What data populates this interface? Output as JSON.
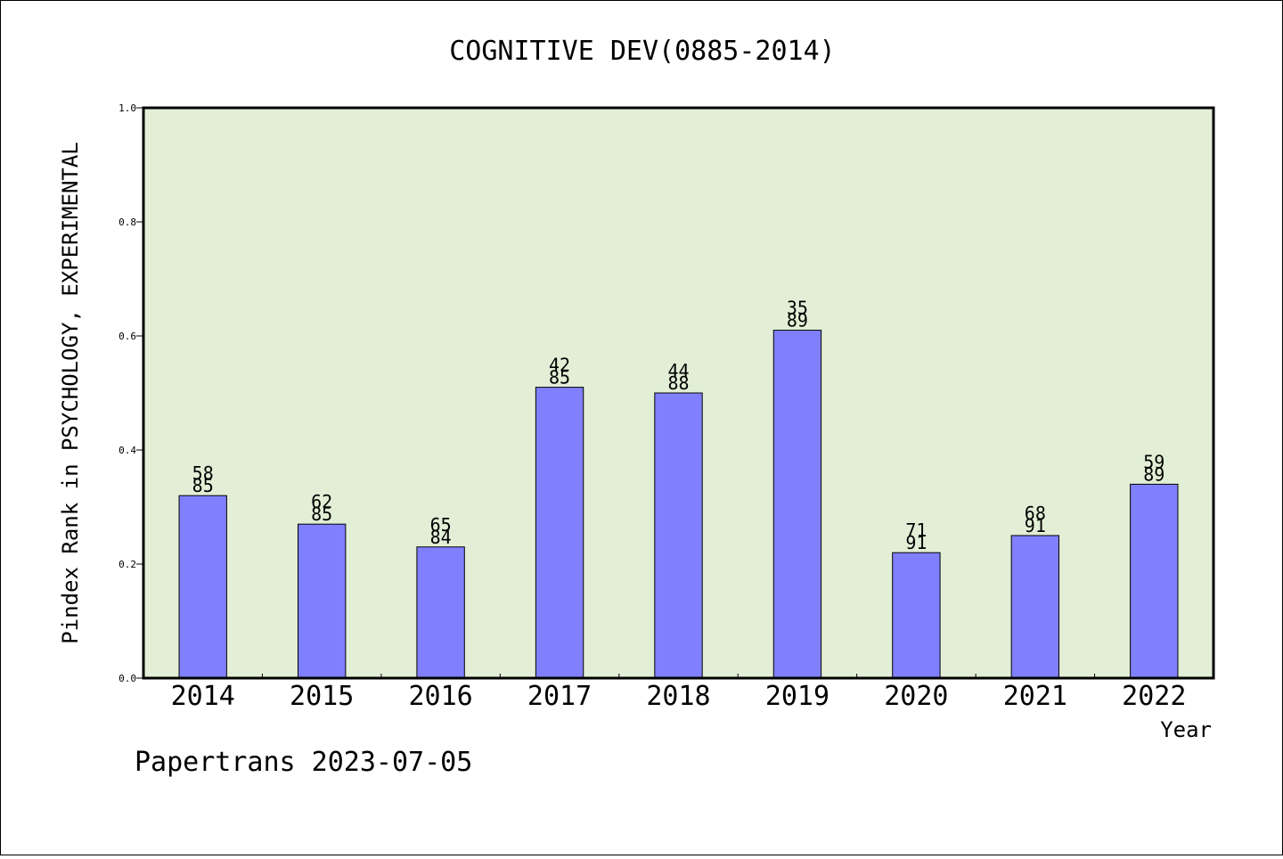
{
  "chart_data": {
    "type": "bar",
    "title": "COGNITIVE DEV(0885-2014)",
    "xlabel": "Year",
    "ylabel": "Pindex Rank in PSYCHOLOGY, EXPERIMENTAL",
    "ylim": [
      0,
      1.0
    ],
    "yticks": [
      "0.0",
      "0.2",
      "0.4",
      "0.6",
      "0.8",
      "1.0"
    ],
    "categories": [
      "2014",
      "2015",
      "2016",
      "2017",
      "2018",
      "2019",
      "2020",
      "2021",
      "2022"
    ],
    "values": [
      0.32,
      0.27,
      0.23,
      0.51,
      0.5,
      0.61,
      0.22,
      0.25,
      0.34
    ],
    "rank_labels": [
      "58",
      "62",
      "65",
      "42",
      "44",
      "35",
      "71",
      "68",
      "59"
    ],
    "total_labels": [
      "85",
      "85",
      "84",
      "85",
      "88",
      "89",
      "91",
      "91",
      "89"
    ],
    "grid": false,
    "colors": {
      "plot_background": "#e2efd6",
      "bar_fill": "#8080ff",
      "bar_stroke": "#000000"
    }
  },
  "footer": {
    "watermark": "Papertrans 2023-07-05"
  }
}
